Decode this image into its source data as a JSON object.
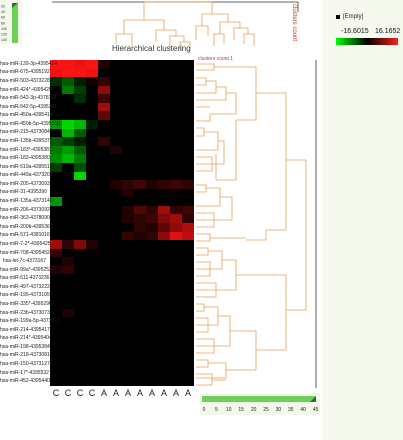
{
  "title": "Hierarchical clustering",
  "clusters_count_top": "clusters count",
  "clusters_count_right": "clusters count 1",
  "legend": {
    "empty_label": "[Empty]",
    "min": "-16.6015",
    "max": "16.1652",
    "min_color": "#00ff00",
    "mid_color": "#000000",
    "max_color": "#ff2020"
  },
  "top_scale_ticks": [
    "20",
    "40",
    "60",
    "80",
    "100",
    "120",
    "140"
  ],
  "bottom_scale_ticks": [
    "0",
    "5",
    "10",
    "15",
    "20",
    "25",
    "30",
    "35",
    "40",
    "45"
  ],
  "column_labels": [
    "C",
    "C",
    "C",
    "C",
    "A",
    "A",
    "A",
    "A",
    "A",
    "A",
    "A",
    "A"
  ],
  "rows": [
    "hsa-miR-139-3p-4395424",
    "hsa-miR-675-4395192",
    "hsa-miR-503-4373228",
    "hsa-miR-424*-4395420",
    "hsa-miR-542-3p-4378101",
    "hsa-miR-542-5p-4395351",
    "hsa-miR-450a-4395414",
    "hsa-miR-450b-5p-4395318",
    "hsa-miR-215-4373084",
    "hsa-miR-135b-4395372",
    "hsa-miR-183*-4395381",
    "hsa-miR-183-4395380",
    "hsa-miR-519a-4395514",
    "hsa-miR-449a-4373207",
    "hsa-miR-205-4373093",
    "hsa-miR-31-4395390",
    "hsa-miR-135a-4373140",
    "hsa-miR-206-4373092",
    "hsa-miR-363-4378090",
    "hsa-miR-200b-4395362",
    "hsa-miR-571-4381016",
    "hsa-miR-7-2*-4395425",
    "hsa-miR-708-4395452",
    "hsa-let-7c-4373167",
    "hsa-miR-99a*-4395252",
    "hsa-miR-511-4373236",
    "hsa-miR-497-4373222",
    "hsa-miR-195-4373105",
    "hsa-miR-335*-4395296",
    "hsa-miR-23b-4373073",
    "hsa-miR-199a-5p-4373272",
    "hsa-miR-214-4395417",
    "hsa-miR-214*-4395404",
    "hsa-miR-198-4395384",
    "hsa-miR-218-4373081",
    "hsa-miR-150-4373127",
    "hsa-miR-17*-4395532",
    "hsa-miR-452-4395440"
  ],
  "heat_values": [
    [
      16,
      16,
      15,
      16,
      2,
      0,
      0,
      0,
      0,
      0,
      0,
      0
    ],
    [
      15,
      16,
      16,
      15,
      0,
      0,
      0,
      0,
      0,
      0,
      0,
      0
    ],
    [
      -3,
      -6,
      -2,
      1,
      3,
      0,
      0,
      0,
      0,
      0,
      0,
      0
    ],
    [
      0,
      -8,
      -4,
      0,
      9,
      0,
      0,
      0,
      0,
      0,
      0,
      0
    ],
    [
      0,
      0,
      -3,
      0,
      4,
      0,
      0,
      0,
      0,
      0,
      0,
      0
    ],
    [
      0,
      0,
      0,
      0,
      10,
      0,
      0,
      0,
      0,
      0,
      0,
      0
    ],
    [
      0,
      0,
      0,
      0,
      6,
      0,
      0,
      0,
      0,
      0,
      0,
      0
    ],
    [
      -10,
      -14,
      -12,
      -2,
      0,
      0,
      0,
      0,
      0,
      0,
      0,
      0
    ],
    [
      0,
      -12,
      -6,
      0,
      0,
      0,
      0,
      0,
      0,
      0,
      0,
      0
    ],
    [
      -6,
      -4,
      -2,
      0,
      3,
      0,
      0,
      0,
      0,
      0,
      0,
      0
    ],
    [
      -8,
      -10,
      -6,
      0,
      0,
      2,
      0,
      0,
      0,
      0,
      0,
      0
    ],
    [
      -9,
      -12,
      -8,
      0,
      0,
      0,
      0,
      0,
      0,
      0,
      0,
      0
    ],
    [
      -4,
      0,
      -5,
      0,
      0,
      0,
      0,
      0,
      0,
      0,
      0,
      0
    ],
    [
      0,
      0,
      -14,
      0,
      0,
      0,
      0,
      0,
      0,
      0,
      0,
      0
    ],
    [
      0,
      0,
      0,
      0,
      0,
      2,
      3,
      4,
      2,
      3,
      4,
      3
    ],
    [
      0,
      0,
      0,
      0,
      0,
      0,
      2,
      0,
      0,
      0,
      0,
      0
    ],
    [
      -10,
      0,
      0,
      0,
      0,
      0,
      0,
      0,
      0,
      0,
      0,
      0
    ],
    [
      0,
      0,
      0,
      0,
      0,
      0,
      2,
      5,
      3,
      10,
      3,
      4
    ],
    [
      0,
      0,
      0,
      0,
      0,
      0,
      2,
      3,
      4,
      8,
      10,
      3
    ],
    [
      0,
      0,
      0,
      0,
      0,
      0,
      0,
      3,
      2,
      6,
      9,
      11
    ],
    [
      0,
      0,
      0,
      0,
      0,
      0,
      3,
      2,
      3,
      9,
      14,
      12
    ],
    [
      10,
      3,
      8,
      2,
      0,
      0,
      0,
      0,
      0,
      0,
      0,
      0
    ],
    [
      3,
      0,
      0,
      0,
      0,
      0,
      0,
      0,
      0,
      0,
      0,
      0
    ],
    [
      0,
      2,
      0,
      0,
      0,
      0,
      0,
      0,
      0,
      0,
      0,
      0
    ],
    [
      2,
      3,
      0,
      0,
      0,
      0,
      0,
      0,
      0,
      0,
      0,
      0
    ],
    [
      0,
      0,
      0,
      0,
      0,
      0,
      0,
      0,
      0,
      0,
      0,
      0
    ],
    [
      0,
      0,
      0,
      0,
      0,
      0,
      0,
      0,
      0,
      0,
      0,
      0
    ],
    [
      0,
      0,
      0,
      0,
      0,
      0,
      0,
      0,
      0,
      0,
      0,
      0
    ],
    [
      0,
      0,
      0,
      0,
      0,
      0,
      0,
      0,
      0,
      0,
      0,
      0
    ],
    [
      0,
      2,
      0,
      0,
      0,
      0,
      0,
      0,
      0,
      0,
      0,
      0
    ],
    [
      0,
      0,
      0,
      0,
      0,
      0,
      0,
      0,
      0,
      0,
      0,
      0
    ],
    [
      0,
      0,
      0,
      0,
      0,
      0,
      0,
      0,
      0,
      0,
      0,
      0
    ],
    [
      0,
      0,
      0,
      0,
      0,
      0,
      0,
      0,
      0,
      0,
      0,
      0
    ],
    [
      0,
      0,
      0,
      0,
      0,
      0,
      0,
      0,
      0,
      0,
      0,
      0
    ],
    [
      0,
      0,
      0,
      0,
      0,
      0,
      0,
      0,
      0,
      0,
      0,
      0
    ],
    [
      0,
      0,
      0,
      0,
      0,
      0,
      0,
      0,
      0,
      0,
      0,
      0
    ],
    [
      0,
      0,
      0,
      0,
      0,
      0,
      0,
      0,
      0,
      0,
      0,
      0
    ],
    [
      0,
      0,
      0,
      0,
      0,
      0,
      0,
      0,
      0,
      0,
      0,
      0
    ]
  ],
  "dendrogram_color": "#e8a05a"
}
